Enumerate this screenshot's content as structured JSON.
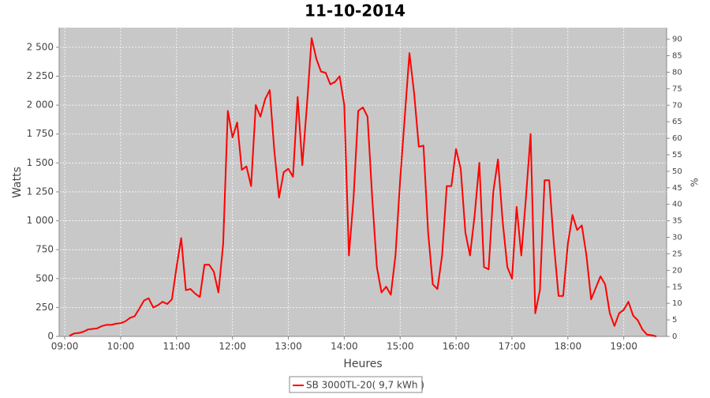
{
  "chart_data": {
    "type": "line",
    "title": "11-10-2014",
    "x_label": "Heures",
    "y_label": "Watts",
    "y2_label": "%",
    "x": [
      "09:05",
      "09:10",
      "09:15",
      "09:20",
      "09:25",
      "09:30",
      "09:35",
      "09:40",
      "09:45",
      "09:50",
      "09:55",
      "10:00",
      "10:05",
      "10:10",
      "10:15",
      "10:20",
      "10:25",
      "10:30",
      "10:35",
      "10:40",
      "10:45",
      "10:50",
      "10:55",
      "11:00",
      "11:05",
      "11:10",
      "11:15",
      "11:20",
      "11:25",
      "11:30",
      "11:35",
      "11:40",
      "11:45",
      "11:50",
      "11:55",
      "12:00",
      "12:05",
      "12:10",
      "12:15",
      "12:20",
      "12:25",
      "12:30",
      "12:35",
      "12:40",
      "12:45",
      "12:50",
      "12:55",
      "13:00",
      "13:05",
      "13:10",
      "13:15",
      "13:20",
      "13:25",
      "13:30",
      "13:35",
      "13:40",
      "13:45",
      "13:50",
      "13:55",
      "14:00",
      "14:05",
      "14:10",
      "14:15",
      "14:20",
      "14:25",
      "14:30",
      "14:35",
      "14:40",
      "14:45",
      "14:50",
      "14:55",
      "15:00",
      "15:05",
      "15:10",
      "15:15",
      "15:20",
      "15:25",
      "15:30",
      "15:35",
      "15:40",
      "15:45",
      "15:50",
      "15:55",
      "16:00",
      "16:05",
      "16:10",
      "16:15",
      "16:20",
      "16:25",
      "16:30",
      "16:35",
      "16:40",
      "16:45",
      "16:50",
      "16:55",
      "17:00",
      "17:05",
      "17:10",
      "17:15",
      "17:20",
      "17:25",
      "17:30",
      "17:35",
      "17:40",
      "17:45",
      "17:50",
      "17:55",
      "18:00",
      "18:05",
      "18:10",
      "18:15",
      "18:20",
      "18:25",
      "18:30",
      "18:35",
      "18:40",
      "18:45",
      "18:50",
      "18:55",
      "19:00",
      "19:05",
      "19:10",
      "19:15",
      "19:20",
      "19:25",
      "19:30",
      "19:35"
    ],
    "series": [
      {
        "name": "SB 3000TL-20( 9,7 kWh )",
        "color": "#ff0000",
        "values": [
          5,
          25,
          30,
          40,
          60,
          65,
          70,
          90,
          100,
          100,
          110,
          115,
          130,
          160,
          175,
          240,
          310,
          330,
          250,
          270,
          300,
          280,
          320,
          600,
          850,
          400,
          410,
          370,
          340,
          620,
          620,
          560,
          380,
          800,
          1950,
          1720,
          1850,
          1440,
          1470,
          1300,
          2000,
          1900,
          2050,
          2130,
          1600,
          1200,
          1420,
          1450,
          1380,
          2070,
          1480,
          2000,
          2580,
          2400,
          2290,
          2280,
          2180,
          2200,
          2250,
          2000,
          700,
          1200,
          1950,
          1980,
          1900,
          1200,
          600,
          380,
          430,
          360,
          700,
          1350,
          1900,
          2450,
          2100,
          1640,
          1650,
          900,
          450,
          410,
          700,
          1300,
          1300,
          1620,
          1450,
          900,
          700,
          1050,
          1500,
          600,
          580,
          1250,
          1530,
          1000,
          600,
          500,
          1120,
          700,
          1200,
          1750,
          200,
          400,
          1350,
          1350,
          800,
          350,
          350,
          800,
          1050,
          920,
          960,
          700,
          320,
          420,
          520,
          450,
          200,
          90,
          200,
          230,
          300,
          180,
          140,
          60,
          15,
          10,
          0
        ]
      }
    ],
    "xlim": [
      "08:54",
      "19:46"
    ],
    "xticks": [
      "09:00",
      "10:00",
      "11:00",
      "12:00",
      "13:00",
      "14:00",
      "15:00",
      "16:00",
      "17:00",
      "18:00",
      "19:00"
    ],
    "ylim": [
      0,
      2670
    ],
    "yticks": [
      0,
      250,
      500,
      750,
      {
        "value": 1000,
        "label": "1 000"
      },
      {
        "value": 1250,
        "label": "1 250"
      },
      {
        "value": 1500,
        "label": "1 500"
      },
      {
        "value": 1750,
        "label": "1 750"
      },
      {
        "value": 2000,
        "label": "2 000"
      },
      {
        "value": 2250,
        "label": "2 250"
      },
      {
        "value": 2500,
        "label": "2 500"
      }
    ],
    "y2lim": [
      0,
      93.5
    ],
    "y2ticks": [
      0,
      5,
      10,
      15,
      20,
      25,
      30,
      35,
      40,
      45,
      50,
      55,
      60,
      65,
      70,
      75,
      80,
      85,
      90
    ],
    "grid": true,
    "legend": "bottom"
  }
}
